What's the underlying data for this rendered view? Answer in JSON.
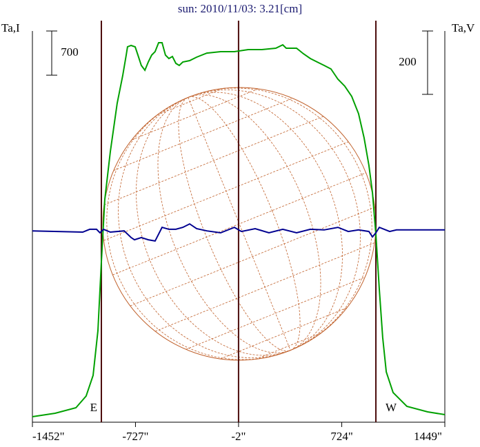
{
  "chart_data": {
    "type": "line",
    "title": "sun: 2010/11/03: 3.21[cm]",
    "y_label": "Ta,I",
    "y2_label": "Ta,V",
    "xlim": [
      -1452,
      1449
    ],
    "xticks": [
      {
        "value": -1452,
        "label": "-1452\""
      },
      {
        "value": -727,
        "label": "-727\""
      },
      {
        "value": -2,
        "label": "-2\""
      },
      {
        "value": 724,
        "label": "724\""
      },
      {
        "value": 1449,
        "label": "1449\""
      }
    ],
    "ylim": [
      0,
      6200
    ],
    "y2lim": [
      -600,
      635
    ],
    "y_scale_bar": 700,
    "y2_scale_bar": 200,
    "vlines": [
      {
        "value": -967,
        "label": "E"
      },
      -2,
      {
        "value": 964,
        "label": "W"
      }
    ],
    "series": [
      {
        "color": "#00a000",
        "x": [
          -1452,
          -1292,
          -1146,
          -1074,
          -1025,
          -991,
          -967,
          -943,
          -904,
          -856,
          -817,
          -792,
          -783,
          -758,
          -729,
          -710,
          -686,
          -661,
          -637,
          -613,
          -589,
          -564,
          -540,
          -516,
          -492,
          -467,
          -443,
          -419,
          -394,
          -346,
          -297,
          -225,
          -128,
          -31,
          66,
          163,
          260,
          309,
          333,
          357,
          406,
          454,
          503,
          551,
          600,
          648,
          697,
          745,
          794,
          842,
          881,
          915,
          940,
          964,
          988,
          1012,
          1037,
          1085,
          1182,
          1328,
          1449
        ],
        "values": [
          87,
          142,
          229,
          415,
          742,
          1452,
          2544,
          3526,
          4290,
          5054,
          5490,
          5818,
          5949,
          5971,
          5949,
          5818,
          5654,
          5578,
          5709,
          5818,
          5872,
          6014,
          6014,
          5818,
          5763,
          5796,
          5687,
          5654,
          5709,
          5731,
          5785,
          5850,
          5872,
          5872,
          5905,
          5905,
          5927,
          5981,
          5927,
          5927,
          5927,
          5840,
          5763,
          5709,
          5654,
          5599,
          5436,
          5326,
          5163,
          4890,
          4508,
          4071,
          3635,
          2980,
          2107,
          1343,
          797,
          469,
          251,
          164,
          120
        ]
      },
      {
        "color": "#000090",
        "axis": "y2",
        "x": [
          -1452,
          -1098,
          -1049,
          -1001,
          -977,
          -952,
          -904,
          -807,
          -758,
          -734,
          -686,
          -637,
          -589,
          -540,
          -492,
          -443,
          -394,
          -346,
          -297,
          -225,
          -128,
          -31,
          18,
          115,
          212,
          309,
          406,
          503,
          600,
          697,
          770,
          842,
          915,
          940,
          964,
          988,
          1061,
          1109,
          1449
        ],
        "values": [
          4,
          0,
          9,
          9,
          -2,
          9,
          0,
          4,
          -17,
          -24,
          -17,
          -24,
          -28,
          15,
          9,
          9,
          15,
          26,
          11,
          4,
          -2,
          15,
          2,
          11,
          -2,
          9,
          -2,
          9,
          7,
          15,
          2,
          7,
          2,
          -15,
          -2,
          15,
          2,
          7,
          7
        ]
      }
    ]
  }
}
